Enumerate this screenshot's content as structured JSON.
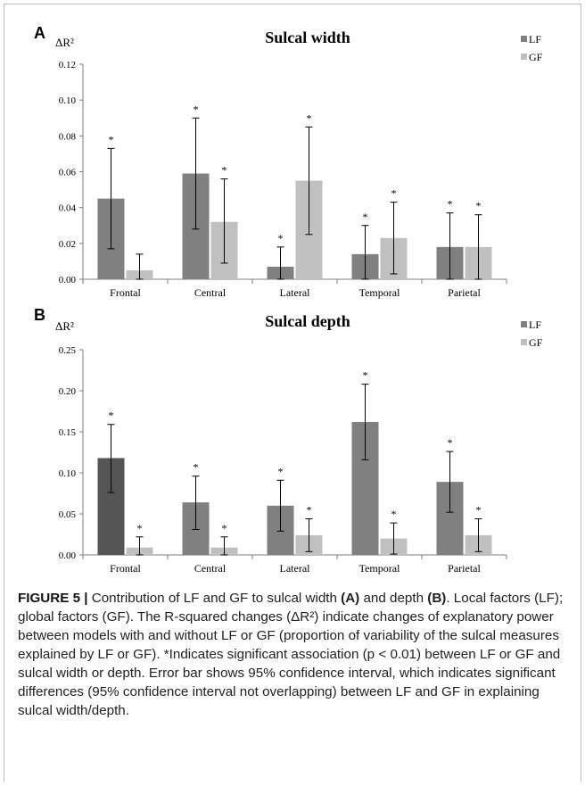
{
  "chart_data": [
    {
      "panel": "A",
      "type": "bar",
      "title": "Sulcal width",
      "ylabel": "ΔR²",
      "ylim": [
        0,
        0.12
      ],
      "yticks": [
        "0.00",
        "0.02",
        "0.04",
        "0.06",
        "0.08",
        "0.10",
        "0.12"
      ],
      "categories": [
        "Frontal",
        "Central",
        "Lateral",
        "Temporal",
        "Parietal"
      ],
      "series": [
        {
          "name": "LF",
          "color": "#808080",
          "values": [
            0.045,
            0.059,
            0.007,
            0.014,
            0.018
          ],
          "err_low": [
            0.017,
            0.028,
            0.0,
            0.0,
            0.0
          ],
          "err_high": [
            0.073,
            0.09,
            0.018,
            0.03,
            0.037
          ],
          "significant": [
            true,
            true,
            true,
            true,
            true
          ]
        },
        {
          "name": "GF",
          "color": "#c0c0c0",
          "values": [
            0.005,
            0.032,
            0.055,
            0.023,
            0.018
          ],
          "err_low": [
            0.0,
            0.009,
            0.025,
            0.003,
            0.0
          ],
          "err_high": [
            0.014,
            0.056,
            0.085,
            0.043,
            0.036
          ],
          "significant": [
            false,
            true,
            true,
            true,
            true
          ]
        }
      ],
      "asterisk": "*",
      "legend_position": "top-right"
    },
    {
      "panel": "B",
      "type": "bar",
      "title": "Sulcal depth",
      "ylabel": "ΔR²",
      "ylim": [
        0,
        0.25
      ],
      "yticks": [
        "0.00",
        "0.05",
        "0.10",
        "0.15",
        "0.20",
        "0.25"
      ],
      "categories": [
        "Frontal",
        "Central",
        "Lateral",
        "Temporal",
        "Parietal"
      ],
      "series": [
        {
          "name": "LF",
          "color": "#808080",
          "values": [
            0.118,
            0.064,
            0.06,
            0.162,
            0.089
          ],
          "err_low": [
            0.076,
            0.031,
            0.029,
            0.116,
            0.052
          ],
          "err_high": [
            0.159,
            0.096,
            0.091,
            0.208,
            0.126
          ],
          "significant": [
            true,
            true,
            true,
            true,
            true
          ]
        },
        {
          "name": "GF",
          "color": "#c0c0c0",
          "values": [
            0.009,
            0.009,
            0.024,
            0.02,
            0.024
          ],
          "err_low": [
            0.0,
            0.0,
            0.004,
            0.001,
            0.004
          ],
          "err_high": [
            0.022,
            0.022,
            0.044,
            0.039,
            0.044
          ],
          "significant": [
            true,
            true,
            true,
            true,
            true
          ]
        }
      ],
      "frontal_lf_color": "#555555",
      "asterisk": "*",
      "legend_position": "top-right"
    }
  ],
  "caption": {
    "label": "FIGURE 5 |",
    "text_1": " Contribution of LF and GF to sulcal width ",
    "bold_a": "(A)",
    "text_2": " and depth ",
    "bold_b": "(B)",
    "text_3": ". Local factors (LF); global factors (GF). The R-squared changes (ΔR²) indicate changes of explanatory power between models with and without LF or GF (proportion of variability of the sulcal measures explained by LF or GF). *Indicates significant association (p < 0.01) between LF or GF and sulcal width or depth. Error bar shows 95% confidence interval, which indicates significant differences (95% confidence interval not overlapping) between LF and GF in explaining sulcal width/depth."
  }
}
